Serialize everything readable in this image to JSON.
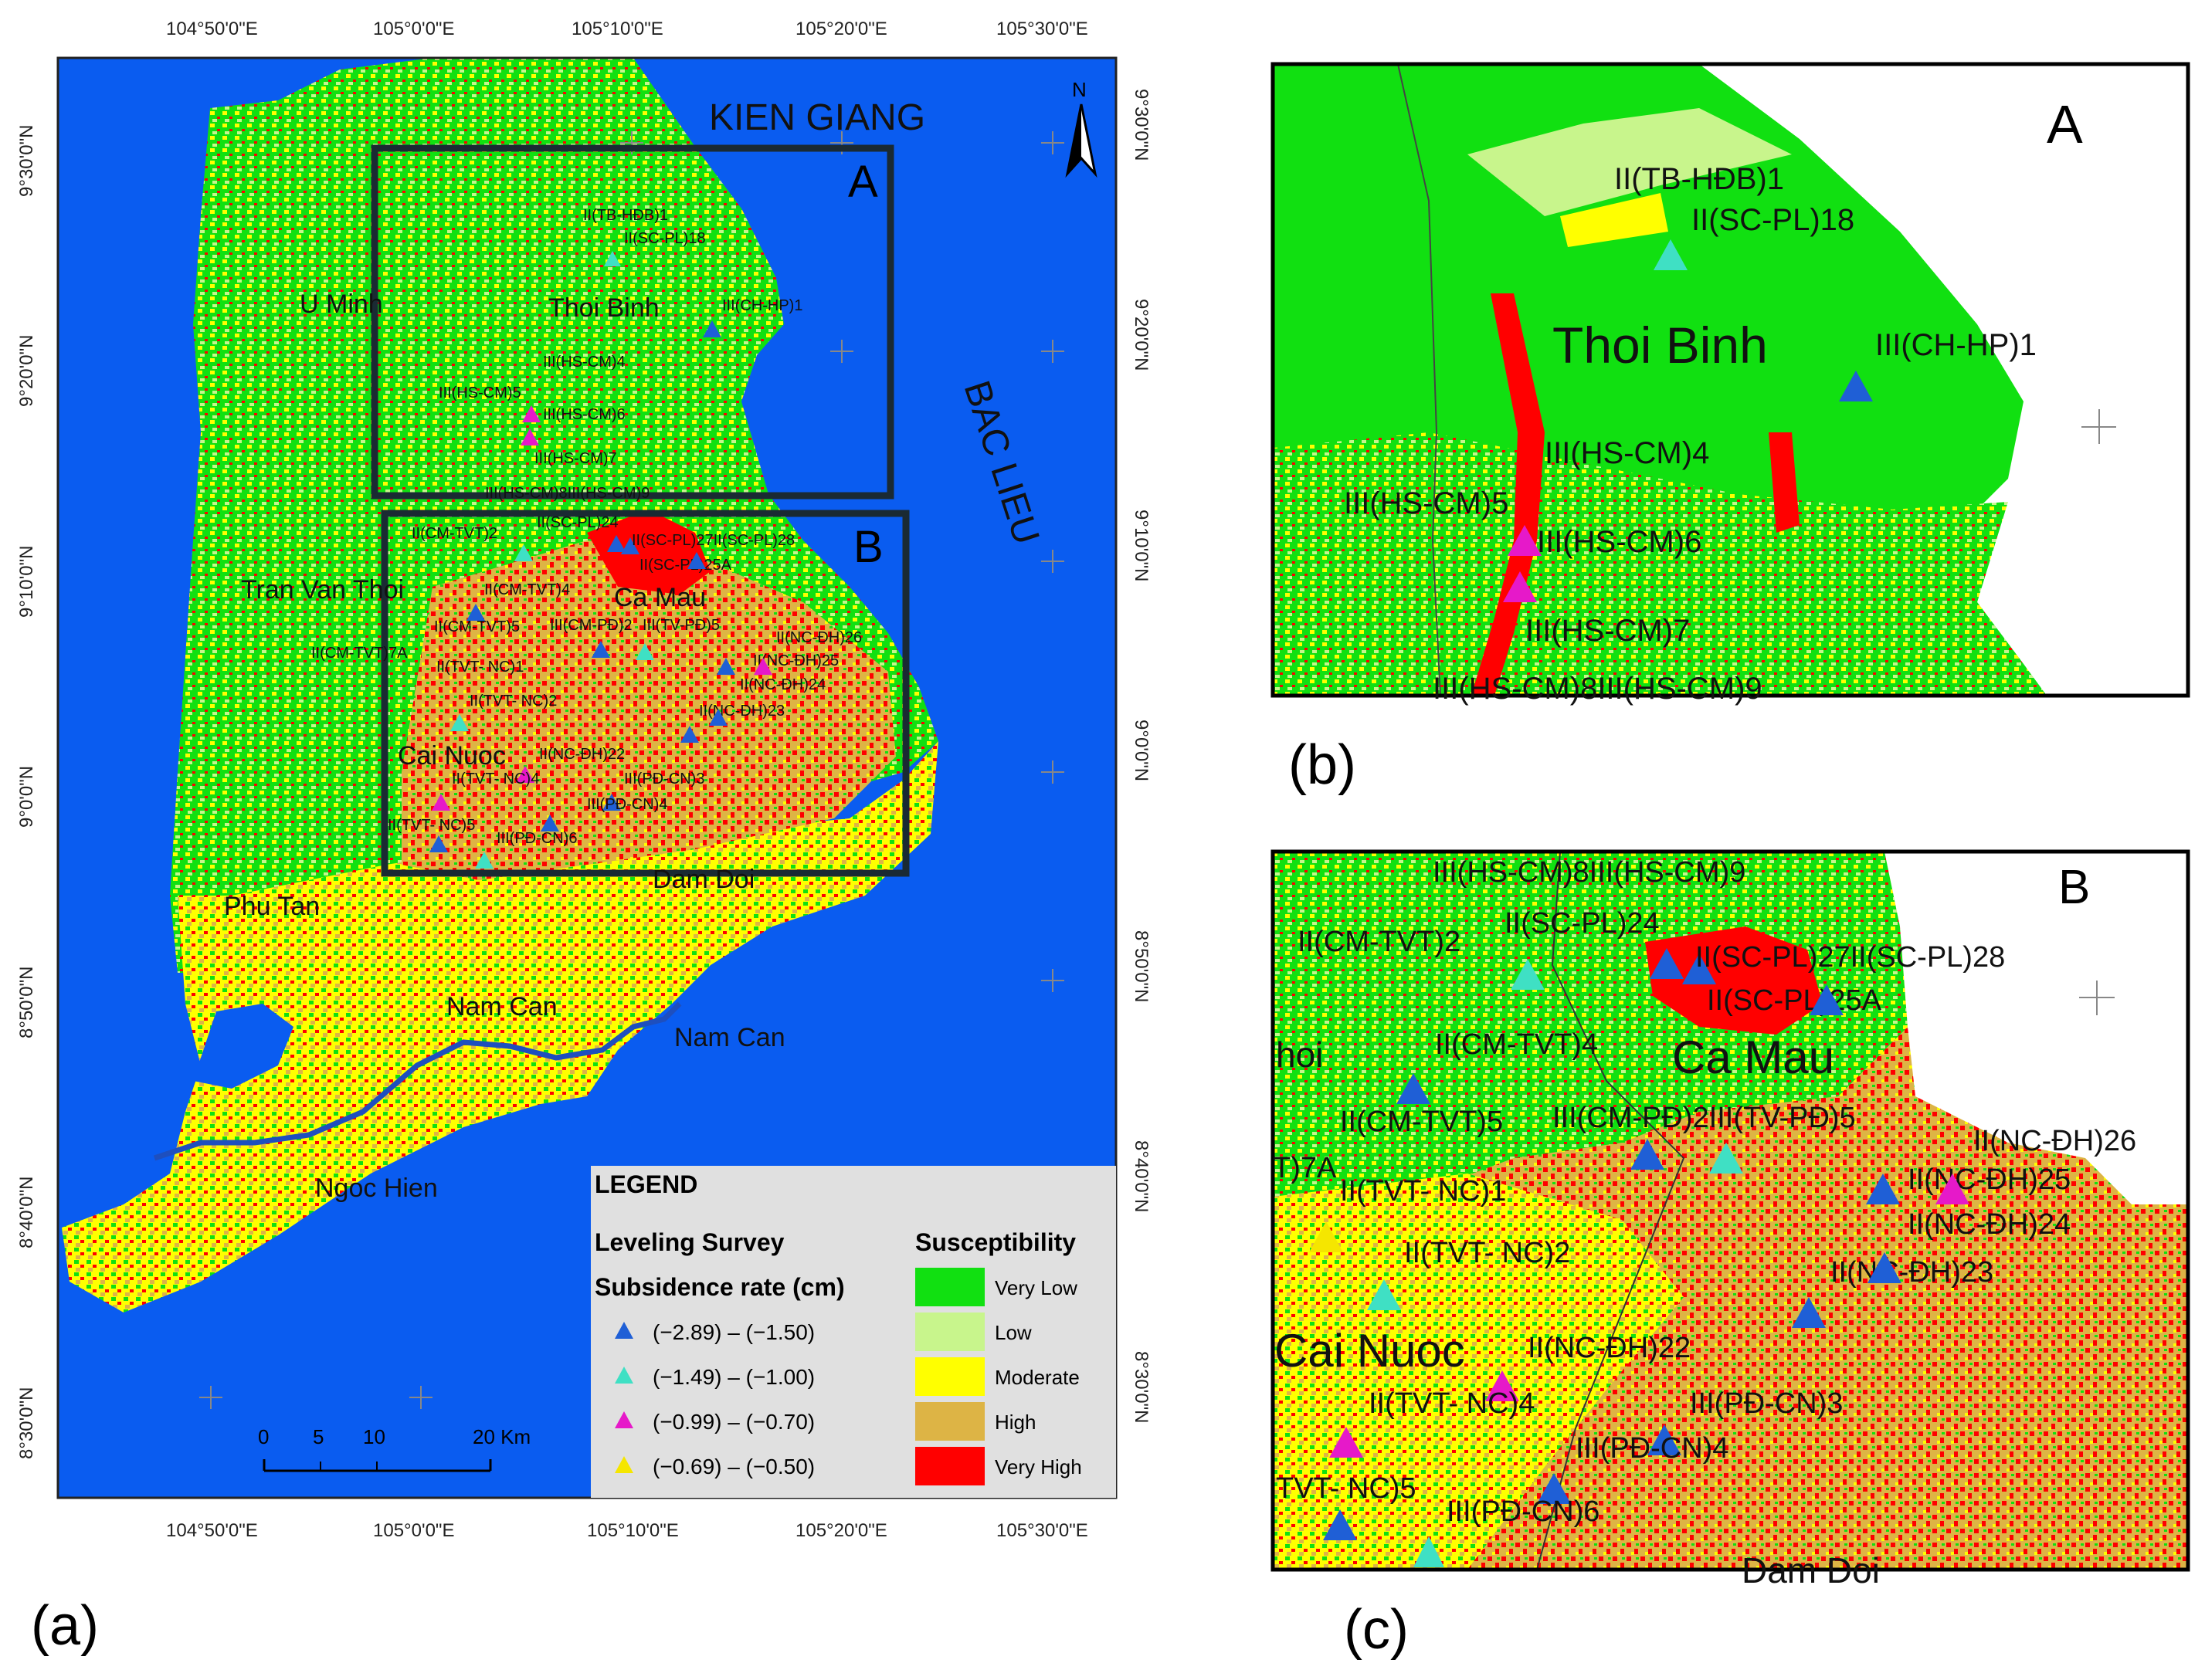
{
  "panel_a": {
    "caption": "(a)",
    "lon_labels": [
      "104°50'0\"E",
      "105°0'0\"E",
      "105°10'0\"E",
      "105°20'0\"E",
      "105°30'0\"E"
    ],
    "lat_labels": [
      "9°30'0\"N",
      "9°20'0\"N",
      "9°10'0\"N",
      "9°0'0\"N",
      "8°50'0\"N",
      "8°40'0\"N",
      "8°30'0\"N"
    ],
    "north_arrow": "N",
    "box_a_label": "A",
    "box_b_label": "B",
    "provinces": [
      "KIEN GIANG",
      "BAC LIEU"
    ],
    "districts": [
      "U Minh",
      "Thoi Binh",
      "Tran Van Thoi",
      "Ca Mau",
      "Cai Nuoc",
      "Phu Tan",
      "Dam Doi",
      "Nam Can",
      "Nam Can",
      "Ngoc Hien"
    ],
    "stations": [
      "II(TB-HĐB)1",
      "II(SC-PL)18",
      "III(CH-HP)1",
      "III(HS-CM)4",
      "III(HS-CM)5",
      "III(HS-CM)6",
      "III(HS-CM)7",
      "III(HS-CM)8III(HS-CM)9",
      "II(CM-TVT)2",
      "II(SC-PL)24",
      "II(SC-PL)27II(SC-PL)28",
      "II(SC-PL)25A",
      "II(CM-TVT)4",
      "II(CM-TVT)5",
      "III(CM-PĐ)2",
      "III(TV-PĐ)5",
      "II(NC-ĐH)26",
      "II(NC-ĐH)25",
      "II(CM-TVT)7A",
      "II(TVT- NC)1",
      "II(NC-ĐH)24",
      "II(TVT- NC)2",
      "II(NC-ĐH)23",
      "II(NC-ĐH)22",
      "II(TVT- NC)4",
      "III(PĐ-CN)3",
      "III(PĐ-CN)4",
      "II(TVT- NC)5",
      "III(PĐ-CN)6"
    ],
    "scale_bar": {
      "ticks": [
        "0",
        "5",
        "10",
        "20 Km"
      ]
    }
  },
  "legend": {
    "title": "LEGEND",
    "survey_title": "Leveling Survey",
    "rate_title": "Subsidence rate (cm)",
    "rate_classes": [
      {
        "label": "(−2.89) – (−1.50)",
        "color": "#1f5fd6"
      },
      {
        "label": "(−1.49) – (−1.00)",
        "color": "#3fe0c4"
      },
      {
        "label": "(−0.99) – (−0.70)",
        "color": "#e619c9"
      },
      {
        "label": "(−0.69) – (−0.50)",
        "color": "#f5e600"
      }
    ],
    "susceptibility_title": "Susceptibility",
    "susceptibility_classes": [
      {
        "label": "Very Low",
        "color": "#11e011"
      },
      {
        "label": " Low",
        "color": "#c8f58c"
      },
      {
        "label": "Moderate",
        "color": "#ffff00"
      },
      {
        "label": "High",
        "color": "#ddb445"
      },
      {
        "label": "Very High",
        "color": "#ff0000"
      }
    ]
  },
  "panel_b": {
    "caption": "(b)",
    "letter": "A",
    "district": "Thoi Binh",
    "stations": [
      "II(TB-HĐB)1",
      "II(SC-PL)18",
      "III(CH-HP)1",
      "III(HS-CM)4",
      "III(HS-CM)5",
      "III(HS-CM)6",
      "III(HS-CM)7",
      "III(HS-CM)8III(HS-CM)9"
    ]
  },
  "panel_c": {
    "caption": "(c)",
    "letter": "B",
    "districts": [
      "Ca Mau",
      "Cai Nuoc",
      "hoi",
      "Dam Doi"
    ],
    "stations": [
      "III(HS-CM)8III(HS-CM)9",
      "II(CM-TVT)2",
      "II(SC-PL)24",
      "II(SC-PL)27II(SC-PL)28",
      "II(SC-PL)25A",
      "II(CM-TVT)4",
      "II(CM-TVT)5",
      "III(CM-PĐ)2III(TV-PĐ)5",
      "II(NC-ĐH)26",
      "II(NC-ĐH)25",
      "T)7A",
      "II(TVT- NC)1",
      "II(NC-ĐH)24",
      "II(TVT- NC)2",
      "II(NC-ĐH)23",
      "II(NC-ĐH)22",
      "II(TVT- NC)4",
      "III(PĐ-CN)3",
      "III(PĐ-CN)4",
      "TVT- NC)5",
      "III(PĐ-CN)6"
    ]
  },
  "colors": {
    "sea": "#0a5cf0",
    "very_low": "#11e011",
    "low": "#c8f58c",
    "moderate": "#ffff00",
    "high": "#ddb445",
    "very_high": "#ff0000",
    "frame": "#1a2a33",
    "legend_bg": "#e0e0e0"
  }
}
